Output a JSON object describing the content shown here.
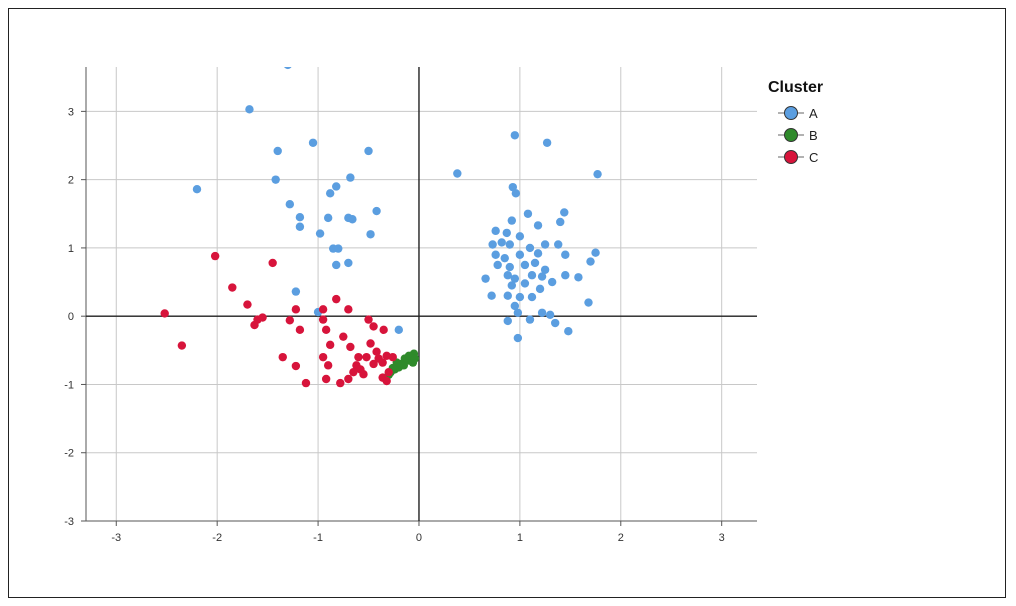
{
  "chart_data": {
    "type": "scatter",
    "xlim": [
      -3.3,
      3.35
    ],
    "ylim": [
      -3,
      3.65
    ],
    "xticks": [
      "-3",
      "-2",
      "-1",
      "0",
      "1",
      "2",
      "3"
    ],
    "yticks": [
      "3",
      "2",
      "1",
      "0",
      "-1",
      "-2",
      "-3"
    ],
    "grid": true,
    "legend": {
      "title": "Cluster",
      "placement": "right"
    },
    "series": [
      {
        "name": "A",
        "color": "#5b9ee0",
        "points": [
          [
            -1.3,
            3.68
          ],
          [
            -1.68,
            3.03
          ],
          [
            -1.05,
            2.54
          ],
          [
            -1.4,
            2.42
          ],
          [
            -0.5,
            2.42
          ],
          [
            -2.2,
            1.86
          ],
          [
            -1.42,
            2.0
          ],
          [
            -0.68,
            2.03
          ],
          [
            -0.82,
            1.9
          ],
          [
            -0.88,
            1.8
          ],
          [
            -1.28,
            1.64
          ],
          [
            -1.18,
            1.45
          ],
          [
            -1.18,
            1.31
          ],
          [
            -0.9,
            1.44
          ],
          [
            -0.7,
            1.44
          ],
          [
            -0.66,
            1.42
          ],
          [
            -0.42,
            1.54
          ],
          [
            -0.48,
            1.2
          ],
          [
            -0.98,
            1.21
          ],
          [
            -0.85,
            0.99
          ],
          [
            -0.8,
            0.99
          ],
          [
            -0.82,
            0.75
          ],
          [
            -0.7,
            0.78
          ],
          [
            -1.22,
            0.36
          ],
          [
            -1.0,
            0.06
          ],
          [
            -0.2,
            -0.2
          ],
          [
            0.38,
            2.09
          ],
          [
            0.95,
            2.65
          ],
          [
            1.27,
            2.54
          ],
          [
            1.77,
            2.08
          ],
          [
            0.93,
            1.89
          ],
          [
            0.96,
            1.8
          ],
          [
            0.92,
            1.4
          ],
          [
            1.08,
            1.5
          ],
          [
            1.44,
            1.52
          ],
          [
            1.4,
            1.38
          ],
          [
            1.18,
            1.33
          ],
          [
            0.76,
            1.25
          ],
          [
            0.87,
            1.22
          ],
          [
            1.0,
            1.17
          ],
          [
            0.73,
            1.05
          ],
          [
            0.82,
            1.08
          ],
          [
            0.9,
            1.05
          ],
          [
            1.1,
            1.0
          ],
          [
            1.25,
            1.05
          ],
          [
            1.38,
            1.05
          ],
          [
            1.75,
            0.93
          ],
          [
            1.7,
            0.8
          ],
          [
            0.76,
            0.9
          ],
          [
            0.85,
            0.85
          ],
          [
            1.0,
            0.9
          ],
          [
            1.18,
            0.92
          ],
          [
            1.45,
            0.9
          ],
          [
            0.78,
            0.75
          ],
          [
            0.9,
            0.72
          ],
          [
            1.05,
            0.75
          ],
          [
            1.15,
            0.78
          ],
          [
            1.25,
            0.68
          ],
          [
            0.88,
            0.6
          ],
          [
            0.95,
            0.55
          ],
          [
            1.12,
            0.6
          ],
          [
            1.22,
            0.58
          ],
          [
            0.66,
            0.55
          ],
          [
            1.32,
            0.5
          ],
          [
            1.45,
            0.6
          ],
          [
            1.58,
            0.57
          ],
          [
            0.92,
            0.45
          ],
          [
            1.05,
            0.48
          ],
          [
            1.2,
            0.4
          ],
          [
            0.72,
            0.3
          ],
          [
            0.88,
            0.3
          ],
          [
            1.0,
            0.28
          ],
          [
            1.12,
            0.28
          ],
          [
            1.68,
            0.2
          ],
          [
            0.95,
            0.15
          ],
          [
            1.22,
            0.05
          ],
          [
            1.3,
            0.02
          ],
          [
            1.1,
            -0.05
          ],
          [
            0.98,
            0.05
          ],
          [
            0.88,
            -0.07
          ],
          [
            1.35,
            -0.1
          ],
          [
            1.48,
            -0.22
          ],
          [
            0.98,
            -0.32
          ]
        ]
      },
      {
        "name": "B",
        "color": "#2f8a2b",
        "points": [
          [
            -0.05,
            -0.55
          ],
          [
            -0.08,
            -0.6
          ],
          [
            -0.1,
            -0.65
          ],
          [
            -0.14,
            -0.62
          ],
          [
            -0.18,
            -0.7
          ],
          [
            -0.06,
            -0.68
          ],
          [
            -0.2,
            -0.75
          ],
          [
            -0.24,
            -0.78
          ],
          [
            -0.28,
            -0.82
          ],
          [
            -0.3,
            -0.86
          ],
          [
            -0.15,
            -0.72
          ],
          [
            -0.1,
            -0.58
          ],
          [
            -0.22,
            -0.68
          ],
          [
            -0.04,
            -0.62
          ],
          [
            -0.26,
            -0.76
          ]
        ]
      },
      {
        "name": "C",
        "color": "#d7143b",
        "points": [
          [
            -2.02,
            0.88
          ],
          [
            -1.45,
            0.78
          ],
          [
            -1.85,
            0.42
          ],
          [
            -1.7,
            0.17
          ],
          [
            -2.52,
            0.04
          ],
          [
            -1.22,
            0.1
          ],
          [
            -1.6,
            -0.05
          ],
          [
            -1.55,
            -0.02
          ],
          [
            -1.63,
            -0.13
          ],
          [
            -1.28,
            -0.06
          ],
          [
            -1.18,
            -0.2
          ],
          [
            -0.95,
            -0.05
          ],
          [
            -0.95,
            0.1
          ],
          [
            -0.82,
            0.25
          ],
          [
            -0.7,
            0.1
          ],
          [
            -0.92,
            -0.2
          ],
          [
            -0.75,
            -0.3
          ],
          [
            -0.5,
            -0.05
          ],
          [
            -0.45,
            -0.15
          ],
          [
            -0.35,
            -0.2
          ],
          [
            -2.35,
            -0.43
          ],
          [
            -1.35,
            -0.6
          ],
          [
            -1.22,
            -0.73
          ],
          [
            -1.12,
            -0.98
          ],
          [
            -0.95,
            -0.6
          ],
          [
            -0.9,
            -0.72
          ],
          [
            -0.92,
            -0.92
          ],
          [
            -0.78,
            -0.98
          ],
          [
            -0.7,
            -0.92
          ],
          [
            -0.68,
            -0.45
          ],
          [
            -0.88,
            -0.42
          ],
          [
            -0.62,
            -0.72
          ],
          [
            -0.58,
            -0.78
          ],
          [
            -0.55,
            -0.85
          ],
          [
            -0.45,
            -0.7
          ],
          [
            -0.4,
            -0.62
          ],
          [
            -0.36,
            -0.68
          ],
          [
            -0.32,
            -0.58
          ],
          [
            -0.3,
            -0.82
          ],
          [
            -0.36,
            -0.9
          ],
          [
            -0.32,
            -0.95
          ],
          [
            -0.26,
            -0.6
          ],
          [
            -0.48,
            -0.4
          ],
          [
            -0.42,
            -0.52
          ],
          [
            -0.52,
            -0.6
          ],
          [
            -0.65,
            -0.82
          ],
          [
            -0.6,
            -0.6
          ]
        ]
      }
    ]
  }
}
